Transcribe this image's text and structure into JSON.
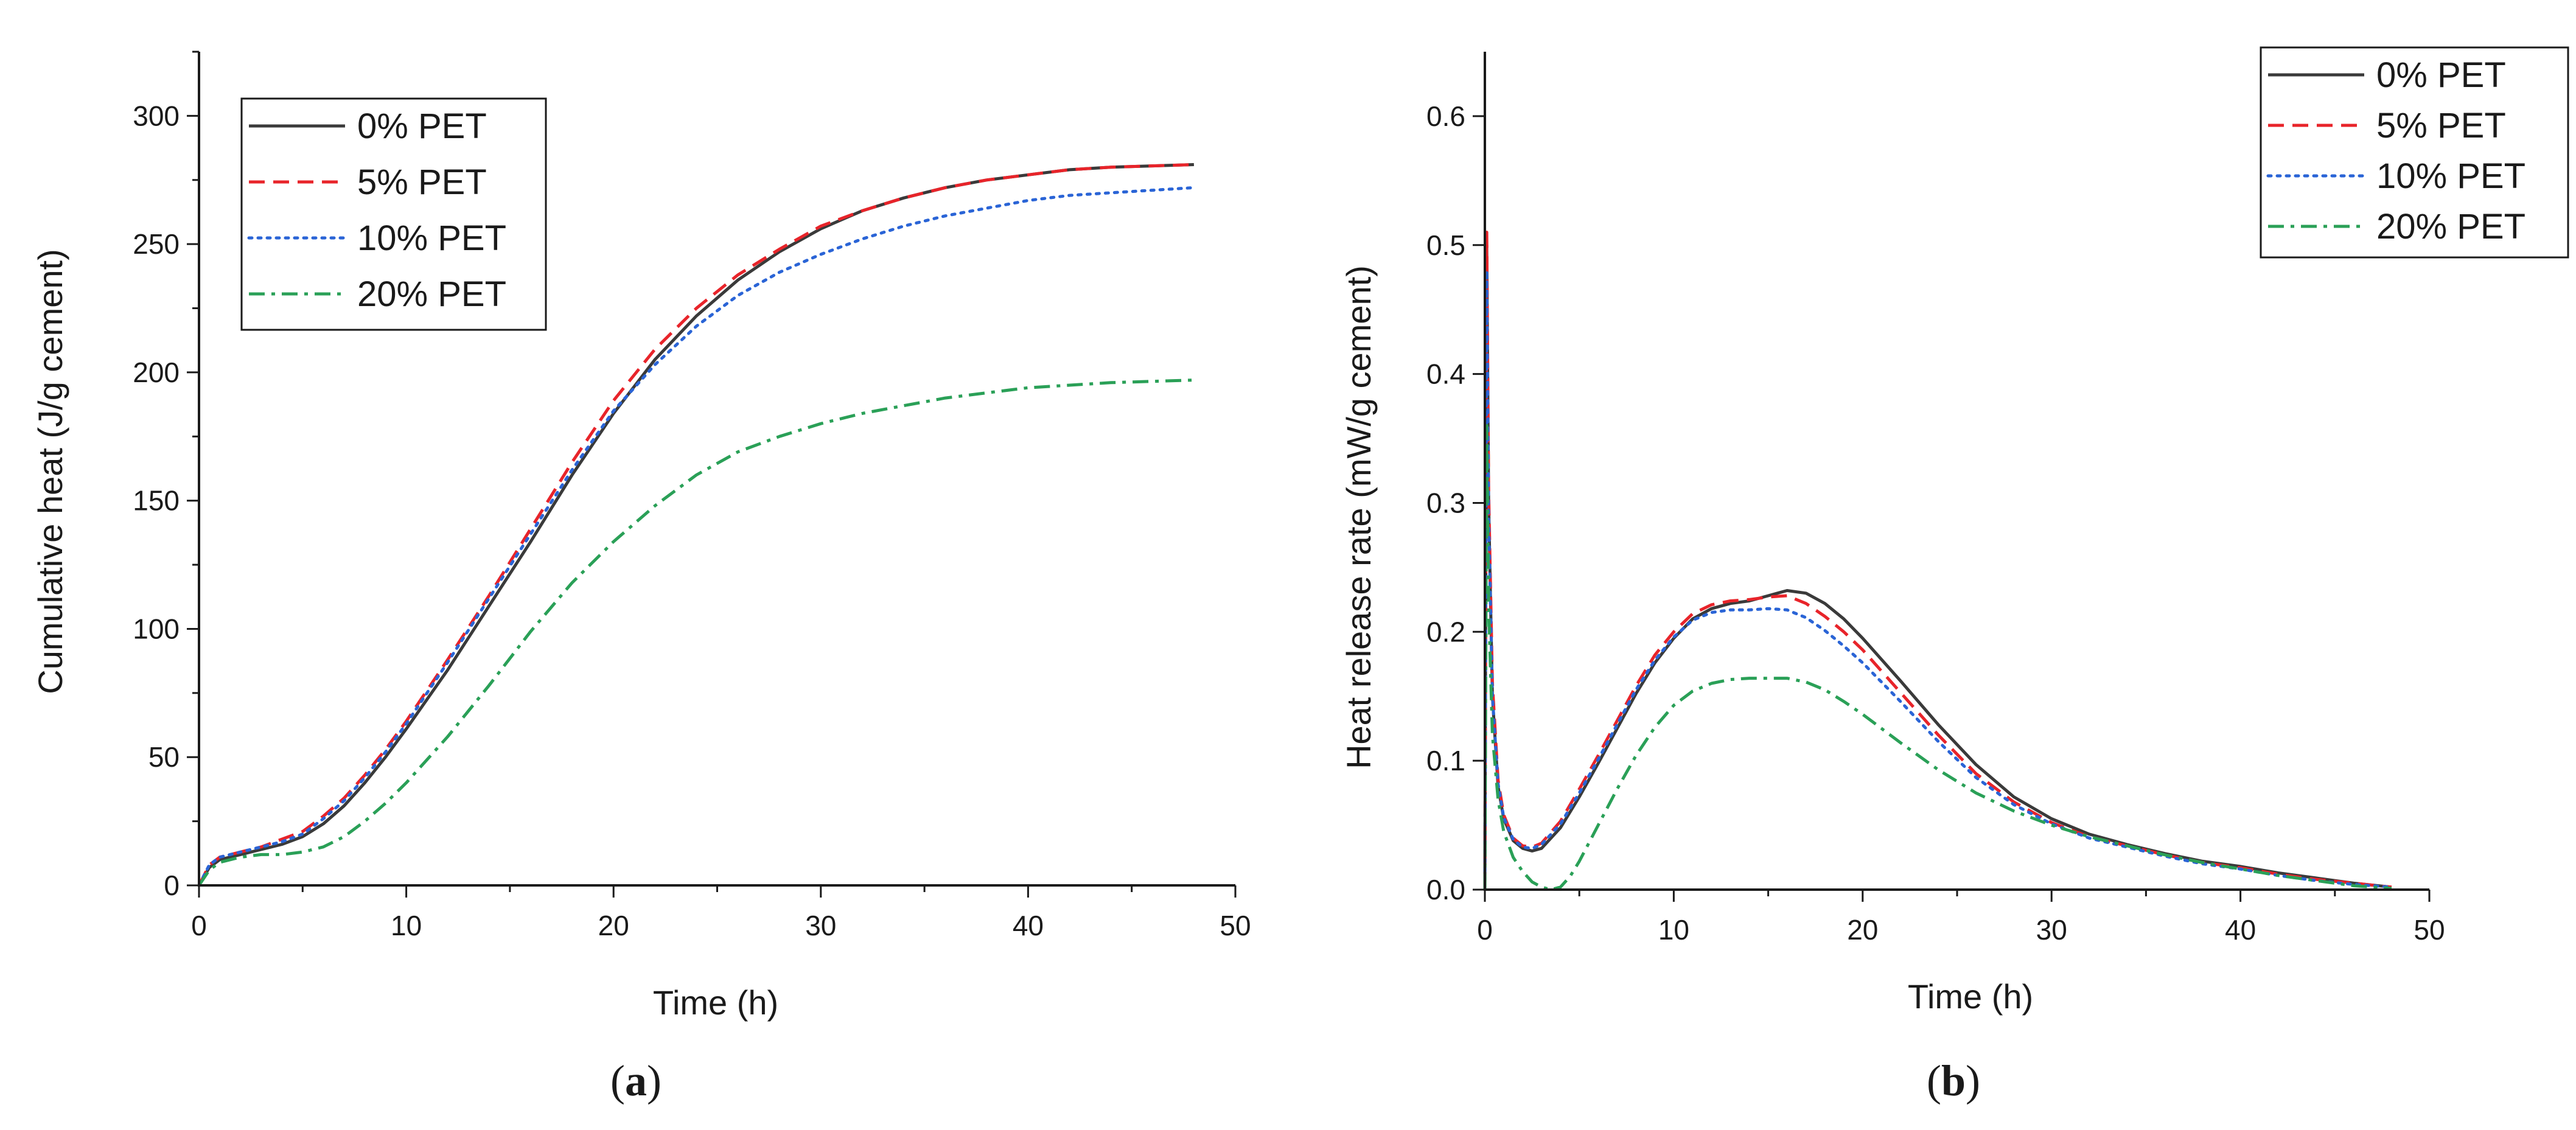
{
  "chart_data": [
    {
      "type": "line",
      "panel": "a",
      "panel_label": "a",
      "xlabel": "Time (h)",
      "ylabel": "Cumulative heat (J/g cement)",
      "xlim": [
        0,
        50
      ],
      "ylim": [
        0,
        325
      ],
      "xticks": [
        0,
        10,
        20,
        30,
        40,
        50
      ],
      "yticks": [
        0,
        50,
        100,
        150,
        200,
        250,
        300
      ],
      "legend_position": "top-left",
      "series": [
        {
          "name": "0% PET",
          "color": "#3a3a3a",
          "style": "solid",
          "x": [
            0,
            0.5,
            1,
            2,
            3,
            4,
            5,
            6,
            7,
            8,
            9,
            10,
            12,
            14,
            16,
            18,
            20,
            22,
            24,
            26,
            28,
            30,
            32,
            34,
            36,
            38,
            40,
            42,
            44,
            46,
            48
          ],
          "y": [
            0,
            7,
            10,
            12,
            14,
            16,
            19,
            24,
            31,
            40,
            50,
            61,
            84,
            109,
            134,
            160,
            184,
            205,
            222,
            236,
            247,
            256,
            263,
            268,
            272,
            275,
            277,
            279,
            280,
            280.5,
            281
          ]
        },
        {
          "name": "5% PET",
          "color": "#e8242a",
          "style": "dashed",
          "x": [
            0,
            0.5,
            1,
            2,
            3,
            4,
            5,
            6,
            7,
            8,
            9,
            10,
            12,
            14,
            16,
            18,
            20,
            22,
            24,
            26,
            28,
            30,
            32,
            34,
            36,
            38,
            40,
            42,
            44,
            46,
            48
          ],
          "y": [
            0,
            8,
            11,
            13,
            15,
            18,
            21,
            27,
            34,
            43,
            53,
            64,
            88,
            113,
            139,
            165,
            189,
            209,
            225,
            238,
            248,
            257,
            263,
            268,
            272,
            275,
            277,
            279,
            280,
            280.5,
            281
          ]
        },
        {
          "name": "10% PET",
          "color": "#2a64d6",
          "style": "dotted",
          "x": [
            0,
            0.5,
            1,
            2,
            3,
            4,
            5,
            6,
            7,
            8,
            9,
            10,
            12,
            14,
            16,
            18,
            20,
            22,
            24,
            26,
            28,
            30,
            32,
            34,
            36,
            38,
            40,
            42,
            44,
            46,
            48
          ],
          "y": [
            0,
            8,
            11,
            13,
            15,
            17,
            20,
            26,
            33,
            42,
            52,
            63,
            87,
            112,
            137,
            162,
            185,
            203,
            218,
            230,
            239,
            246,
            252,
            257,
            261,
            264,
            267,
            269,
            270,
            271,
            272
          ]
        },
        {
          "name": "20% PET",
          "color": "#2aa057",
          "style": "dashdot",
          "x": [
            0,
            0.5,
            1,
            2,
            3,
            4,
            5,
            6,
            7,
            8,
            9,
            10,
            12,
            14,
            16,
            18,
            20,
            22,
            24,
            26,
            28,
            30,
            32,
            34,
            36,
            38,
            40,
            42,
            44,
            46,
            48
          ],
          "y": [
            0,
            6,
            9,
            11,
            12,
            12,
            13,
            15,
            19,
            25,
            32,
            40,
            58,
            78,
            99,
            118,
            134,
            148,
            160,
            169,
            175,
            180,
            184,
            187,
            190,
            192,
            194,
            195,
            196,
            196.5,
            197
          ]
        }
      ]
    },
    {
      "type": "line",
      "panel": "b",
      "panel_label": "b",
      "xlabel": "Time (h)",
      "ylabel": "Heat release rate (mW/g cement)",
      "xlim": [
        0,
        50
      ],
      "ylim": [
        0,
        0.65
      ],
      "xticks": [
        0,
        10,
        20,
        30,
        40,
        50
      ],
      "yticks": [
        0.0,
        0.1,
        0.2,
        0.3,
        0.4,
        0.5,
        0.6
      ],
      "ytick_labels": [
        "0.0",
        "0.1",
        "0.2",
        "0.3",
        "0.4",
        "0.5",
        "0.6"
      ],
      "legend_position": "top-right",
      "series": [
        {
          "name": "0% PET",
          "color": "#3a3a3a",
          "style": "solid",
          "x": [
            0,
            0.1,
            0.2,
            0.4,
            0.7,
            1,
            1.5,
            2,
            2.5,
            3,
            4,
            5,
            6,
            7,
            8,
            9,
            10,
            11,
            12,
            13,
            14,
            15,
            16,
            17,
            18,
            19,
            20,
            22,
            24,
            26,
            28,
            30,
            32,
            34,
            36,
            38,
            40,
            42,
            44,
            46,
            48
          ],
          "y": [
            0,
            0.5,
            0.3,
            0.15,
            0.08,
            0.055,
            0.038,
            0.032,
            0.03,
            0.032,
            0.048,
            0.072,
            0.098,
            0.125,
            0.152,
            0.176,
            0.195,
            0.21,
            0.218,
            0.222,
            0.224,
            0.228,
            0.232,
            0.23,
            0.222,
            0.21,
            0.195,
            0.162,
            0.128,
            0.097,
            0.072,
            0.055,
            0.043,
            0.035,
            0.028,
            0.022,
            0.018,
            0.013,
            0.009,
            0.005,
            0.002
          ]
        },
        {
          "name": "5% PET",
          "color": "#e8242a",
          "style": "dashed",
          "x": [
            0,
            0.1,
            0.2,
            0.4,
            0.7,
            1,
            1.5,
            2,
            2.5,
            3,
            4,
            5,
            6,
            7,
            8,
            9,
            10,
            11,
            12,
            13,
            14,
            15,
            16,
            17,
            18,
            19,
            20,
            22,
            24,
            26,
            28,
            30,
            32,
            34,
            36,
            38,
            40,
            42,
            44,
            46,
            48
          ],
          "y": [
            0,
            0.51,
            0.31,
            0.16,
            0.085,
            0.058,
            0.04,
            0.034,
            0.033,
            0.036,
            0.053,
            0.078,
            0.104,
            0.131,
            0.158,
            0.182,
            0.2,
            0.214,
            0.221,
            0.224,
            0.225,
            0.227,
            0.228,
            0.222,
            0.212,
            0.2,
            0.186,
            0.153,
            0.12,
            0.09,
            0.068,
            0.052,
            0.041,
            0.034,
            0.027,
            0.021,
            0.017,
            0.012,
            0.008,
            0.005,
            0.002
          ]
        },
        {
          "name": "10% PET",
          "color": "#2a64d6",
          "style": "dotted",
          "x": [
            0,
            0.1,
            0.2,
            0.4,
            0.7,
            1,
            1.5,
            2,
            2.5,
            3,
            4,
            5,
            6,
            7,
            8,
            9,
            10,
            11,
            12,
            13,
            14,
            15,
            16,
            17,
            18,
            19,
            20,
            22,
            24,
            26,
            28,
            30,
            32,
            34,
            36,
            38,
            40,
            42,
            44,
            46,
            48
          ],
          "y": [
            0,
            0.48,
            0.29,
            0.15,
            0.082,
            0.056,
            0.039,
            0.033,
            0.032,
            0.035,
            0.051,
            0.075,
            0.101,
            0.128,
            0.155,
            0.178,
            0.196,
            0.209,
            0.215,
            0.217,
            0.217,
            0.218,
            0.217,
            0.211,
            0.201,
            0.189,
            0.176,
            0.146,
            0.115,
            0.087,
            0.066,
            0.051,
            0.04,
            0.033,
            0.026,
            0.02,
            0.016,
            0.011,
            0.007,
            0.004,
            0.002
          ]
        },
        {
          "name": "20% PET",
          "color": "#2aa057",
          "style": "dashdot",
          "x": [
            0,
            0.1,
            0.2,
            0.4,
            0.7,
            1,
            1.5,
            2,
            2.5,
            3,
            3.5,
            4,
            4.5,
            5,
            6,
            7,
            8,
            9,
            10,
            11,
            12,
            13,
            14,
            15,
            16,
            17,
            18,
            19,
            20,
            22,
            24,
            26,
            28,
            30,
            32,
            34,
            36,
            38,
            40,
            42,
            44,
            46,
            48
          ],
          "y": [
            0,
            0.36,
            0.22,
            0.12,
            0.07,
            0.045,
            0.025,
            0.014,
            0.006,
            0.002,
            0.0,
            0.002,
            0.01,
            0.022,
            0.05,
            0.078,
            0.104,
            0.126,
            0.143,
            0.154,
            0.16,
            0.163,
            0.164,
            0.164,
            0.164,
            0.161,
            0.155,
            0.146,
            0.136,
            0.114,
            0.093,
            0.075,
            0.061,
            0.05,
            0.041,
            0.034,
            0.027,
            0.021,
            0.016,
            0.011,
            0.007,
            0.003,
            0.001
          ]
        }
      ]
    }
  ]
}
